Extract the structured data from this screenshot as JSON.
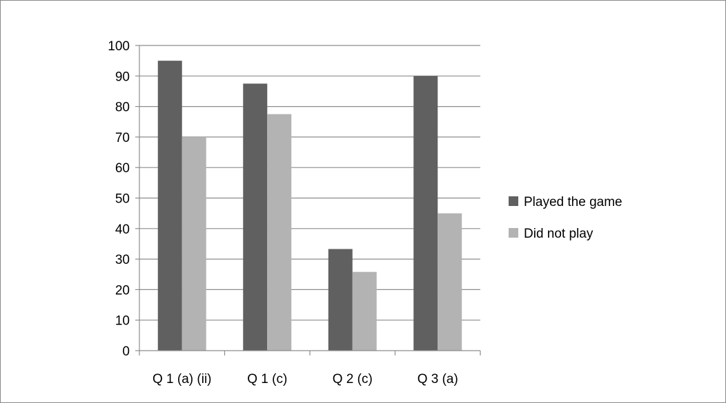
{
  "chart_data": {
    "type": "bar",
    "title": "",
    "xlabel": "",
    "ylabel": "",
    "ylim": [
      0,
      100
    ],
    "yticks": [
      0,
      10,
      20,
      30,
      40,
      50,
      60,
      70,
      80,
      90,
      100
    ],
    "grid": true,
    "legend_position": "right",
    "categories": [
      "Q 1 (a) (ii)",
      "Q 1 (c)",
      "Q 2 (c)",
      "Q 3 (a)"
    ],
    "series": [
      {
        "name": "Played the game",
        "color": "#606060",
        "values": [
          95,
          87.5,
          33.3,
          90
        ]
      },
      {
        "name": "Did not play",
        "color": "#b3b3b3",
        "values": [
          70,
          77.5,
          25.8,
          45
        ]
      }
    ]
  }
}
